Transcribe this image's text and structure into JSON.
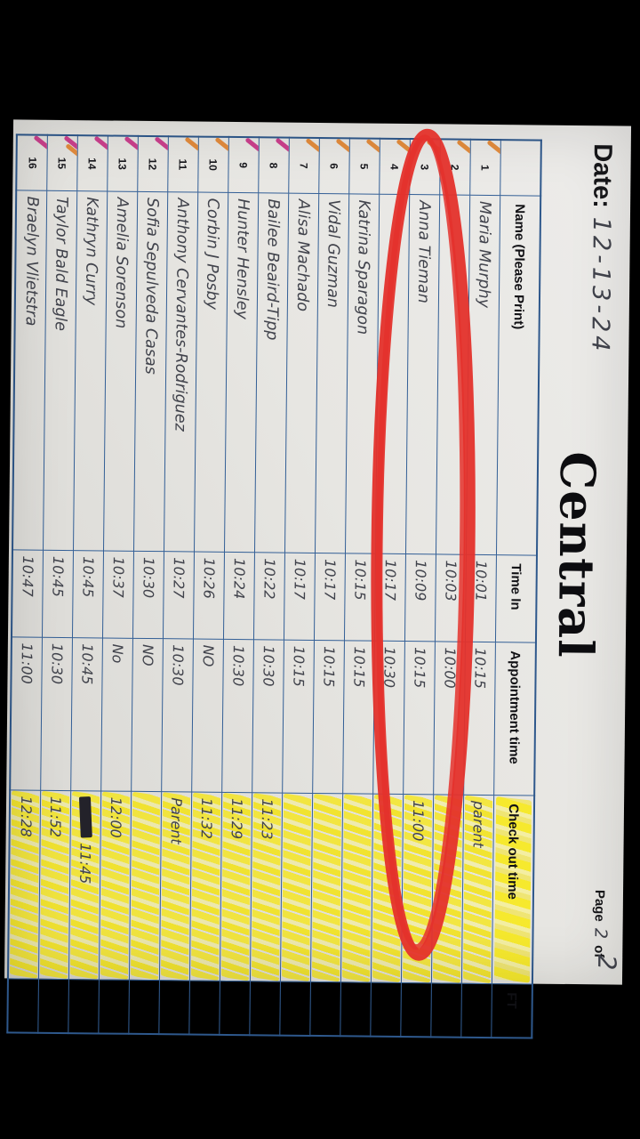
{
  "page": {
    "title": "Central",
    "date_label": "Date:",
    "date_value": "12-13-24",
    "page_label_before": "Page",
    "page_label_after": "of",
    "page_number": "2",
    "page_total": "2"
  },
  "table": {
    "headers": {
      "num": "",
      "name": "Name (Please Print)",
      "time_in": "Time In",
      "appt": "Appointment time",
      "checkout": "Check out time",
      "ft": "FT"
    },
    "rows": [
      {
        "num": "1",
        "name": "Maria Murphy",
        "time_in": "10:01",
        "appt": "10:15",
        "checkout": "parent",
        "ft": "",
        "mark": "orange",
        "circled": false,
        "scribble": false
      },
      {
        "num": "2",
        "name": "",
        "time_in": "10:03",
        "appt": "10:00",
        "checkout": "",
        "ft": "",
        "mark": "orange",
        "circled": false,
        "scribble": false
      },
      {
        "num": "3",
        "name": "Anna Tieman",
        "time_in": "10:09",
        "appt": "10:15",
        "checkout": "11:00",
        "ft": "",
        "mark": "orange",
        "circled": true,
        "scribble": false
      },
      {
        "num": "4",
        "name": "",
        "time_in": "10:17",
        "appt": "10:30",
        "checkout": "",
        "ft": "",
        "mark": "orange",
        "circled": false,
        "scribble": false
      },
      {
        "num": "5",
        "name": "Katrina Sparagon",
        "time_in": "10:15",
        "appt": "10:15",
        "checkout": "",
        "ft": "",
        "mark": "orange",
        "circled": false,
        "scribble": false
      },
      {
        "num": "6",
        "name": "Vidal Guzman",
        "time_in": "10:17",
        "appt": "10:15",
        "checkout": "",
        "ft": "",
        "mark": "orange",
        "circled": false,
        "scribble": false
      },
      {
        "num": "7",
        "name": "Alisa Machado",
        "time_in": "10:17",
        "appt": "10:15",
        "checkout": "",
        "ft": "",
        "mark": "orange",
        "circled": false,
        "scribble": false
      },
      {
        "num": "8",
        "name": "Bailee Beaird-Tipp",
        "time_in": "10:22",
        "appt": "10:30",
        "checkout": "11:23",
        "ft": "",
        "mark": "pink",
        "circled": false,
        "scribble": false
      },
      {
        "num": "9",
        "name": "Hunter Hensley",
        "time_in": "10:24",
        "appt": "10:30",
        "checkout": "11:29",
        "ft": "",
        "mark": "pink",
        "circled": false,
        "scribble": false
      },
      {
        "num": "10",
        "name": "Corbin J Posby",
        "time_in": "10:26",
        "appt": "NO",
        "checkout": "11:32",
        "ft": "",
        "mark": "orange",
        "circled": false,
        "scribble": false
      },
      {
        "num": "11",
        "name": "Anthony Cervantes-Rodriguez",
        "time_in": "10:27",
        "appt": "10:30",
        "checkout": "Parent",
        "ft": "",
        "mark": "orange",
        "circled": false,
        "scribble": false
      },
      {
        "num": "12",
        "name": "Sofia Sepulveda Casas",
        "time_in": "10:30",
        "appt": "NO",
        "checkout": "",
        "ft": "",
        "mark": "pink",
        "circled": false,
        "scribble": false
      },
      {
        "num": "13",
        "name": "Amelia Sorenson",
        "time_in": "10:37",
        "appt": "No",
        "checkout": "12:00",
        "ft": "",
        "mark": "pink",
        "circled": false,
        "scribble": false
      },
      {
        "num": "14",
        "name": "Kathryn Curry",
        "time_in": "10:45",
        "appt": "10:45",
        "checkout": "11:45",
        "ft": "",
        "mark": "pink",
        "circled": false,
        "scribble": true
      },
      {
        "num": "15",
        "name": "Taylor Bald Eagle",
        "time_in": "10:45",
        "appt": "10:30",
        "checkout": "11:52",
        "ft": "",
        "mark": "pink-orange",
        "circled": false,
        "scribble": false
      },
      {
        "num": "16",
        "name": "Braelyn Vlietstra",
        "time_in": "10:47",
        "appt": "11:00",
        "checkout": "12:28",
        "ft": "",
        "mark": "pink",
        "circled": false,
        "scribble": false
      }
    ]
  },
  "annotations": {
    "red_circle_row_number": "3",
    "red_marker_color": "#e4312b",
    "yellow_highlight_color": "#f3e314",
    "pink_mark_color": "#c93286",
    "orange_mark_color": "#e2832f",
    "highlighted_column": "Check out time"
  }
}
